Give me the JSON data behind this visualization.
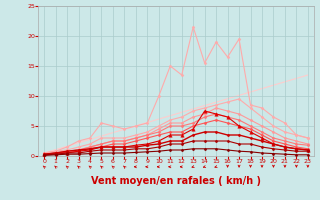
{
  "background_color": "#cce8e8",
  "grid_color": "#aacccc",
  "xlabel": "Vent moyen/en rafales ( km/h )",
  "xlabel_color": "#cc0000",
  "xlabel_fontsize": 7,
  "xtick_color": "#cc0000",
  "ytick_color": "#cc0000",
  "xlim": [
    -0.5,
    23.5
  ],
  "ylim": [
    0,
    25
  ],
  "xticks": [
    0,
    1,
    2,
    3,
    4,
    5,
    6,
    7,
    8,
    9,
    10,
    11,
    12,
    13,
    14,
    15,
    16,
    17,
    18,
    19,
    20,
    21,
    22,
    23
  ],
  "yticks": [
    0,
    5,
    10,
    15,
    20,
    25
  ],
  "series": [
    {
      "x": [
        0,
        23
      ],
      "y": [
        0.5,
        13.5
      ],
      "color": "#ffcccc",
      "linewidth": 0.8,
      "marker": null,
      "linestyle": "-",
      "zorder": 1
    },
    {
      "x": [
        0,
        1,
        2,
        3,
        4,
        5,
        6,
        7,
        8,
        9,
        10,
        11,
        12,
        13,
        14,
        15,
        16,
        17,
        18,
        19,
        20,
        21,
        22,
        23
      ],
      "y": [
        0.5,
        0.8,
        1.5,
        2.5,
        3.0,
        5.5,
        5.0,
        4.5,
        5.0,
        5.5,
        10.0,
        15.0,
        13.5,
        21.5,
        15.5,
        19.0,
        16.5,
        19.5,
        8.5,
        8.0,
        6.5,
        5.5,
        3.5,
        3.0
      ],
      "color": "#ffaaaa",
      "linewidth": 0.8,
      "marker": "D",
      "markersize": 1.5,
      "linestyle": "-",
      "zorder": 2
    },
    {
      "x": [
        0,
        1,
        2,
        3,
        4,
        5,
        6,
        7,
        8,
        9,
        10,
        11,
        12,
        13,
        14,
        15,
        16,
        17,
        18,
        19,
        20,
        21,
        22,
        23
      ],
      "y": [
        0.5,
        0.8,
        1.0,
        1.5,
        2.0,
        3.0,
        3.0,
        3.0,
        3.5,
        4.0,
        5.0,
        6.0,
        6.5,
        7.5,
        8.0,
        8.5,
        9.0,
        9.5,
        8.0,
        6.5,
        5.0,
        4.0,
        3.5,
        3.0
      ],
      "color": "#ffaaaa",
      "linewidth": 0.8,
      "marker": "D",
      "markersize": 1.5,
      "linestyle": "-",
      "zorder": 3
    },
    {
      "x": [
        0,
        1,
        2,
        3,
        4,
        5,
        6,
        7,
        8,
        9,
        10,
        11,
        12,
        13,
        14,
        15,
        16,
        17,
        18,
        19,
        20,
        21,
        22,
        23
      ],
      "y": [
        0.3,
        0.5,
        0.8,
        1.0,
        1.5,
        2.0,
        2.5,
        2.5,
        3.0,
        3.5,
        4.5,
        5.5,
        5.5,
        6.5,
        7.0,
        8.0,
        7.5,
        7.0,
        6.0,
        5.0,
        4.0,
        3.0,
        2.5,
        2.0
      ],
      "color": "#ff9999",
      "linewidth": 0.8,
      "marker": "D",
      "markersize": 1.5,
      "linestyle": "-",
      "zorder": 4
    },
    {
      "x": [
        0,
        1,
        2,
        3,
        4,
        5,
        6,
        7,
        8,
        9,
        10,
        11,
        12,
        13,
        14,
        15,
        16,
        17,
        18,
        19,
        20,
        21,
        22,
        23
      ],
      "y": [
        0.2,
        0.5,
        0.8,
        1.0,
        1.5,
        2.0,
        2.5,
        2.5,
        3.0,
        3.5,
        4.0,
        5.0,
        5.0,
        5.5,
        6.5,
        7.0,
        6.5,
        6.0,
        5.0,
        4.0,
        3.0,
        2.5,
        2.0,
        1.8
      ],
      "color": "#ff7777",
      "linewidth": 0.8,
      "marker": "D",
      "markersize": 1.5,
      "linestyle": "-",
      "zorder": 5
    },
    {
      "x": [
        0,
        1,
        2,
        3,
        4,
        5,
        6,
        7,
        8,
        9,
        10,
        11,
        12,
        13,
        14,
        15,
        16,
        17,
        18,
        19,
        20,
        21,
        22,
        23
      ],
      "y": [
        0.2,
        0.4,
        0.6,
        0.8,
        1.2,
        1.5,
        2.0,
        2.0,
        2.5,
        3.0,
        3.5,
        4.0,
        4.0,
        5.0,
        5.5,
        6.0,
        5.5,
        5.0,
        4.5,
        3.5,
        2.5,
        2.0,
        1.5,
        1.2
      ],
      "color": "#ff5555",
      "linewidth": 0.8,
      "marker": "D",
      "markersize": 1.5,
      "linestyle": "-",
      "zorder": 6
    },
    {
      "x": [
        0,
        1,
        2,
        3,
        4,
        5,
        6,
        7,
        8,
        9,
        10,
        11,
        12,
        13,
        14,
        15,
        16,
        17,
        18,
        19,
        20,
        21,
        22,
        23
      ],
      "y": [
        0.3,
        0.5,
        0.5,
        0.8,
        1.0,
        1.5,
        1.5,
        1.5,
        1.8,
        2.0,
        2.5,
        3.5,
        3.5,
        4.5,
        7.5,
        7.0,
        6.5,
        5.0,
        4.0,
        3.0,
        2.0,
        1.5,
        1.2,
        1.0
      ],
      "color": "#dd0000",
      "linewidth": 0.8,
      "marker": "^",
      "markersize": 2.5,
      "linestyle": "-",
      "zorder": 7
    },
    {
      "x": [
        0,
        1,
        2,
        3,
        4,
        5,
        6,
        7,
        8,
        9,
        10,
        11,
        12,
        13,
        14,
        15,
        16,
        17,
        18,
        19,
        20,
        21,
        22,
        23
      ],
      "y": [
        0.3,
        0.5,
        0.8,
        1.0,
        1.2,
        1.5,
        1.5,
        1.5,
        1.5,
        1.8,
        2.0,
        2.5,
        2.5,
        3.5,
        4.0,
        4.0,
        3.5,
        3.5,
        3.0,
        2.5,
        2.0,
        1.5,
        1.2,
        1.0
      ],
      "color": "#cc0000",
      "linewidth": 1.0,
      "marker": "D",
      "markersize": 1.5,
      "linestyle": "-",
      "zorder": 8
    },
    {
      "x": [
        0,
        1,
        2,
        3,
        4,
        5,
        6,
        7,
        8,
        9,
        10,
        11,
        12,
        13,
        14,
        15,
        16,
        17,
        18,
        19,
        20,
        21,
        22,
        23
      ],
      "y": [
        0.2,
        0.3,
        0.5,
        0.5,
        0.8,
        1.0,
        1.0,
        1.0,
        1.2,
        1.2,
        1.5,
        2.0,
        2.0,
        2.5,
        2.5,
        2.5,
        2.5,
        2.0,
        2.0,
        1.5,
        1.2,
        1.0,
        0.8,
        0.8
      ],
      "color": "#aa0000",
      "linewidth": 0.8,
      "marker": "D",
      "markersize": 1.5,
      "linestyle": "-",
      "zorder": 9
    },
    {
      "x": [
        0,
        1,
        2,
        3,
        4,
        5,
        6,
        7,
        8,
        9,
        10,
        11,
        12,
        13,
        14,
        15,
        16,
        17,
        18,
        19,
        20,
        21,
        22,
        23
      ],
      "y": [
        0.1,
        0.2,
        0.3,
        0.3,
        0.4,
        0.5,
        0.5,
        0.5,
        0.6,
        0.7,
        0.8,
        1.0,
        1.0,
        1.2,
        1.2,
        1.2,
        1.0,
        0.8,
        0.7,
        0.5,
        0.4,
        0.3,
        0.2,
        0.2
      ],
      "color": "#880000",
      "linewidth": 0.8,
      "marker": "D",
      "markersize": 1.5,
      "linestyle": "-",
      "zorder": 10
    }
  ],
  "wind_arrows": {
    "x": [
      0,
      1,
      2,
      3,
      4,
      5,
      6,
      7,
      8,
      9,
      10,
      11,
      12,
      13,
      14,
      15,
      16,
      17,
      18,
      19,
      20,
      21,
      22,
      23
    ],
    "angles_deg": [
      210,
      210,
      210,
      210,
      210,
      210,
      210,
      210,
      270,
      270,
      270,
      270,
      270,
      300,
      300,
      300,
      360,
      360,
      360,
      360,
      360,
      360,
      360,
      360
    ],
    "color": "#cc0000"
  }
}
